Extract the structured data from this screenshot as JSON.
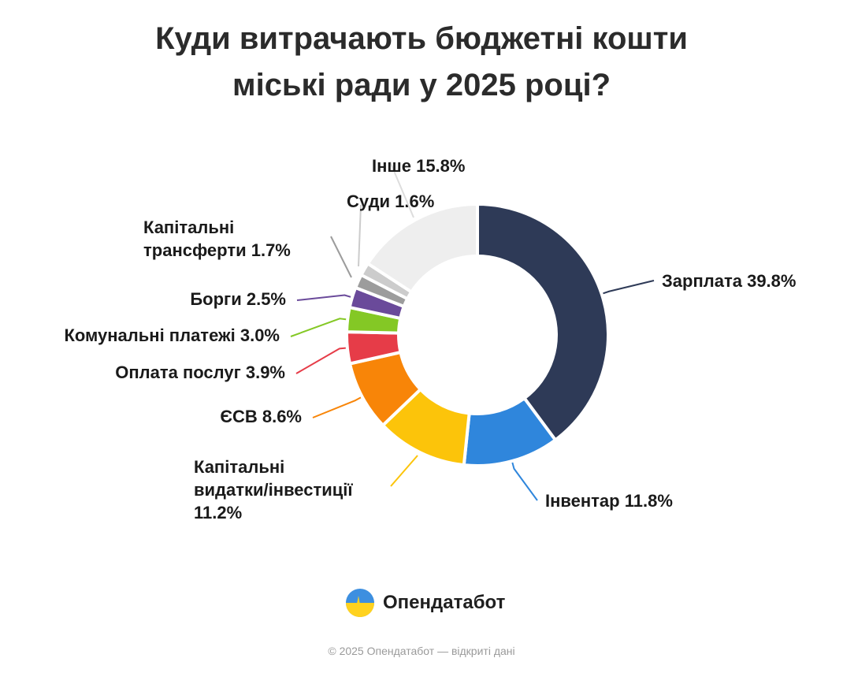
{
  "title_lines": [
    "Куди витрачають бюджетні кошти",
    "міські ради у 2025 році?"
  ],
  "brand_name": "Опендатабот",
  "footer": "© 2025 Опендатабот — відкриті дані",
  "chart_data": {
    "type": "pie",
    "variant": "donut",
    "title": "Куди витрачають бюджетні кошти міські ради у 2025 році?",
    "unit": "%",
    "slices": [
      {
        "label": "Зарплата",
        "value": 39.8,
        "color": "#2e3a57",
        "label_lines": [
          "Зарплата 39.8%"
        ]
      },
      {
        "label": "Інвентар",
        "value": 11.8,
        "color": "#2f86dc",
        "label_lines": [
          "Інвентар 11.8%"
        ]
      },
      {
        "label": "Капітальні видатки/інвестиції",
        "value": 11.2,
        "color": "#fcc40a",
        "label_lines": [
          "Капітальні",
          "видатки/інвестиції",
          "11.2%"
        ]
      },
      {
        "label": "ЄСВ",
        "value": 8.6,
        "color": "#f88508",
        "label_lines": [
          "ЄСВ 8.6%"
        ]
      },
      {
        "label": "Оплата послуг",
        "value": 3.9,
        "color": "#e63c48",
        "label_lines": [
          "Оплата послуг 3.9%"
        ]
      },
      {
        "label": "Комунальні платежі",
        "value": 3.0,
        "color": "#84c825",
        "label_lines": [
          "Комунальні платежі 3.0%"
        ]
      },
      {
        "label": "Борги",
        "value": 2.5,
        "color": "#6a4a9a",
        "label_lines": [
          "Борги 2.5%"
        ]
      },
      {
        "label": "Капітальні трансферти",
        "value": 1.7,
        "color": "#9c9c9c",
        "label_lines": [
          "Капітальні",
          "трансферти 1.7%"
        ]
      },
      {
        "label": "Суди",
        "value": 1.6,
        "color": "#cccccc",
        "label_lines": [
          "Суди 1.6%"
        ]
      },
      {
        "label": "Інше",
        "value": 15.8,
        "color": "#eeeeee",
        "label_lines": [
          "Інше 15.8%"
        ]
      }
    ]
  },
  "colors": {
    "title": "#2b2b2b",
    "label": "#1a1a1a",
    "footer": "#9a9a9a"
  }
}
